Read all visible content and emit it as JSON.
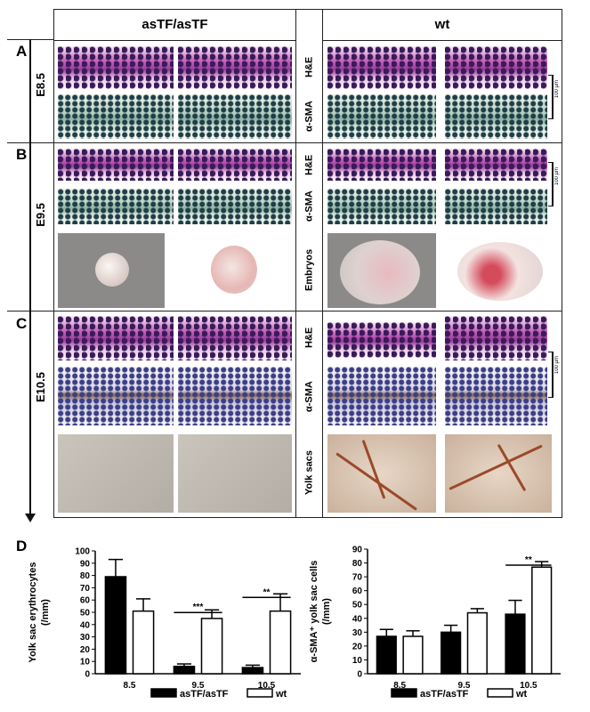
{
  "header": {
    "group_left": "asTF/asTF",
    "group_right": "wt"
  },
  "panels": {
    "a": "A",
    "b": "B",
    "c": "C",
    "d": "D"
  },
  "stages": {
    "e85": "E8.5",
    "e95": "E9.5",
    "e105": "E10.5"
  },
  "row_labels": {
    "he": "H&E",
    "sma": "α-SMA",
    "embryos": "Embryos",
    "yolk_sacs": "Yolk sacs"
  },
  "scale_bar": "100 µm",
  "chart_data": [
    {
      "type": "bar",
      "title": "",
      "xlabel": "",
      "ylabel": "Yolk sac erythrocytes (/mm)",
      "ylabel_lines": [
        "Yolk sac erythrocytes",
        "(/mm)"
      ],
      "categories": [
        "8.5",
        "9.5",
        "10.5"
      ],
      "ylim": [
        0,
        100
      ],
      "yticks": [
        0,
        10,
        20,
        30,
        40,
        50,
        60,
        70,
        80,
        90,
        100
      ],
      "series": [
        {
          "name": "asTF/asTF",
          "color": "#000000",
          "values": [
            79,
            6,
            5
          ],
          "errors": [
            14,
            2,
            2
          ]
        },
        {
          "name": "wt",
          "color": "#ffffff",
          "values": [
            51,
            45,
            51
          ],
          "errors": [
            10,
            7,
            14
          ]
        }
      ],
      "significance": [
        {
          "category": "9.5",
          "label": "***"
        },
        {
          "category": "10.5",
          "label": "**"
        }
      ],
      "legend": "bottom"
    },
    {
      "type": "bar",
      "title": "",
      "xlabel": "",
      "ylabel": "α-SMA+ yolk sac cells (/mm)",
      "ylabel_lines": [
        "α-SMA⁺ yolk sac cells",
        "(/mm)"
      ],
      "categories": [
        "8.5",
        "9.5",
        "10.5"
      ],
      "ylim": [
        0,
        90
      ],
      "yticks": [
        0,
        10,
        20,
        30,
        40,
        50,
        60,
        70,
        80,
        90
      ],
      "series": [
        {
          "name": "asTF/asTF",
          "color": "#000000",
          "values": [
            27,
            30,
            43
          ],
          "errors": [
            5,
            5,
            10
          ]
        },
        {
          "name": "wt",
          "color": "#ffffff",
          "values": [
            27,
            44,
            77
          ],
          "errors": [
            4,
            3,
            4
          ]
        }
      ],
      "significance": [
        {
          "category": "10.5",
          "label": "**"
        }
      ],
      "legend": "bottom"
    }
  ]
}
